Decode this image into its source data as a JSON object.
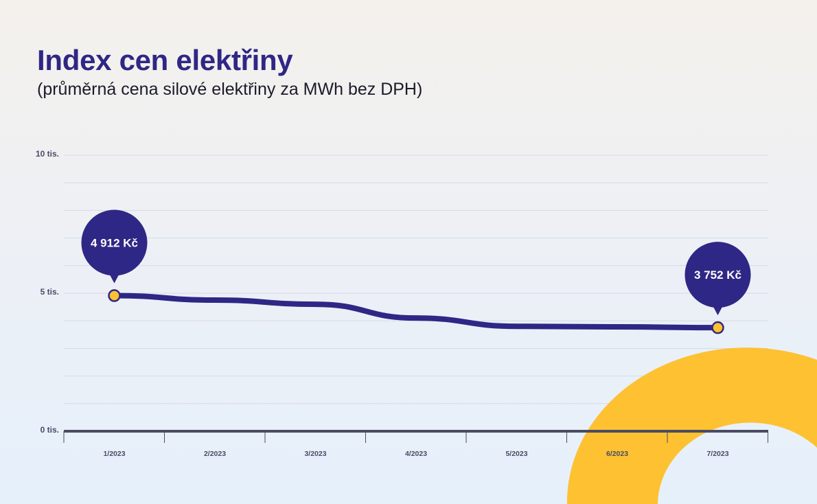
{
  "header": {
    "title": "Index cen elektřiny",
    "subtitle": "(průměrná cena silové elektřiny za MWh bez DPH)"
  },
  "colors": {
    "line": "#2f2785",
    "accent": "#fdc132",
    "axis": "#4b4b63",
    "grid": "#d5d9e6"
  },
  "chart_data": {
    "type": "line",
    "categories": [
      "1/2023",
      "2/2023",
      "3/2023",
      "4/2023",
      "5/2023",
      "6/2023",
      "7/2023"
    ],
    "series": [
      {
        "values": [
          4912,
          4750,
          4600,
          4100,
          3800,
          3780,
          3752
        ]
      }
    ],
    "ylim": [
      0,
      10000
    ],
    "yticks": [
      {
        "value": 0,
        "label": "0 tis."
      },
      {
        "value": 5000,
        "label": "5 tis."
      },
      {
        "value": 10000,
        "label": "10 tis."
      }
    ],
    "grid": true,
    "annotations": [
      {
        "index": 0,
        "label": "4 912 Kč"
      },
      {
        "index": 6,
        "label": "3 752 Kč"
      }
    ]
  }
}
